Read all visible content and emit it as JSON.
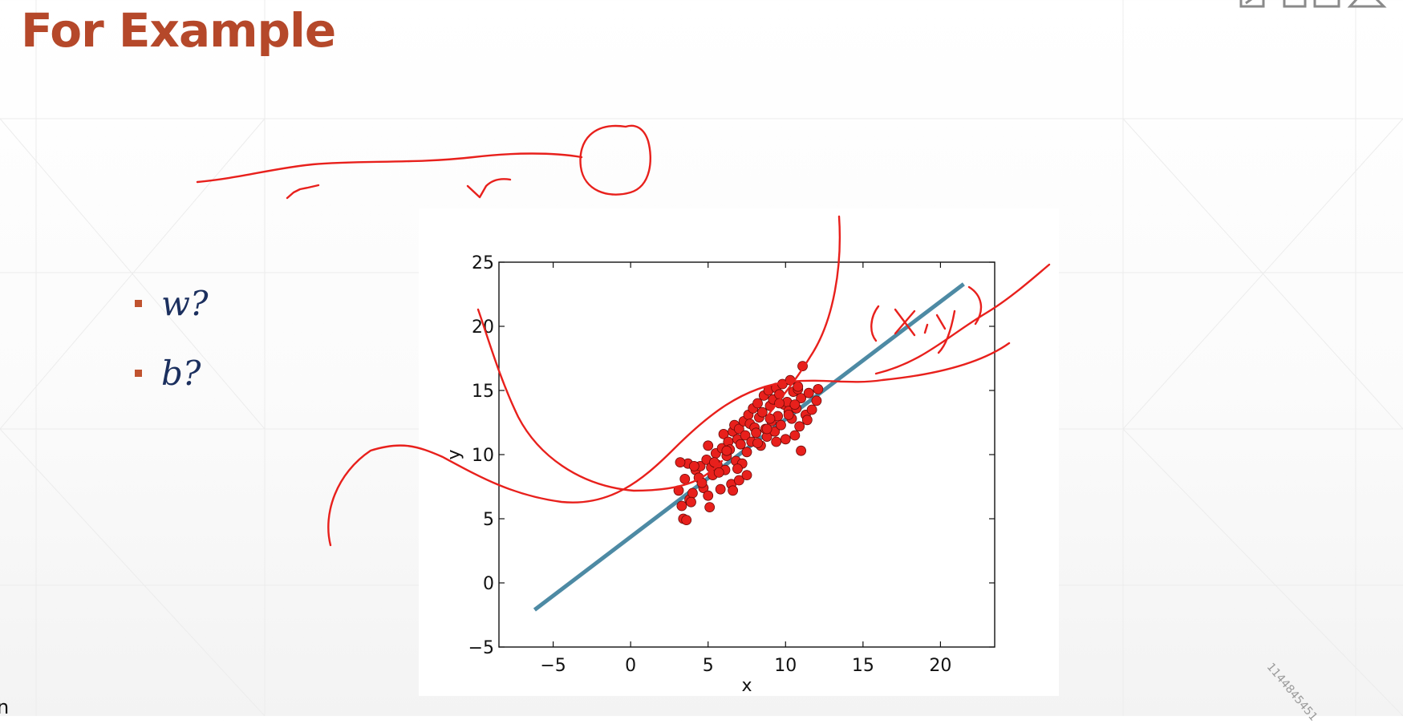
{
  "slide": {
    "title": "For Example",
    "bullets": [
      {
        "label": "w?"
      },
      {
        "label": "b?"
      }
    ],
    "watermark": "1144845451",
    "edge_glyph": "n"
  },
  "colors": {
    "title": "#b5482a",
    "bullet_text": "#1b2f5e",
    "fit_line": "#4d8aa4",
    "points": "#e8201c",
    "annotation_ink": "#e8201c"
  },
  "annotation_text": "(x, y)",
  "chart_data": {
    "type": "scatter",
    "xlabel": "x",
    "ylabel": "y",
    "xlim": [
      -8.5,
      23.5
    ],
    "ylim": [
      -5,
      25
    ],
    "xticks": [
      -5,
      0,
      5,
      10,
      15,
      20
    ],
    "yticks": [
      -5,
      0,
      5,
      10,
      15,
      20,
      25
    ],
    "xtick_labels": [
      "−5",
      "0",
      "5",
      "10",
      "15",
      "20"
    ],
    "ytick_labels": [
      "−5",
      "0",
      "5",
      "10",
      "15",
      "20",
      "25"
    ],
    "grid": false,
    "series": [
      {
        "kind": "points",
        "x": [
          3.1,
          3.3,
          3.4,
          3.6,
          3.7,
          3.8,
          3.5,
          4.0,
          4.2,
          4.4,
          4.5,
          4.7,
          4.9,
          5.0,
          5.1,
          5.2,
          5.3,
          5.5,
          5.6,
          5.8,
          5.9,
          6.0,
          6.1,
          6.2,
          6.3,
          6.4,
          6.5,
          6.6,
          6.7,
          6.8,
          6.9,
          7.0,
          7.1,
          7.2,
          7.3,
          7.4,
          7.5,
          7.6,
          7.7,
          7.8,
          7.9,
          8.0,
          8.1,
          8.2,
          8.3,
          8.4,
          8.5,
          8.6,
          8.7,
          8.8,
          8.9,
          9.0,
          9.1,
          9.2,
          9.3,
          9.4,
          9.5,
          9.6,
          9.7,
          9.8,
          9.9,
          10.0,
          10.1,
          10.2,
          10.3,
          10.4,
          10.5,
          10.6,
          10.7,
          10.8,
          10.9,
          11.0,
          11.1,
          11.3,
          11.5,
          11.7,
          12.0,
          4.1,
          5.4,
          6.2,
          7.0,
          3.9,
          5.0,
          6.9,
          8.2,
          9.0,
          9.6,
          10.2,
          10.8,
          11.0,
          12.1,
          3.2,
          4.6,
          5.7,
          6.6,
          7.5,
          8.8,
          9.4,
          10.6,
          11.4
        ],
        "y": [
          7.2,
          6.0,
          5.0,
          4.9,
          9.3,
          6.5,
          8.1,
          7.0,
          8.8,
          8.2,
          9.1,
          7.4,
          9.6,
          6.8,
          5.9,
          9.0,
          8.4,
          10.1,
          9.2,
          7.3,
          10.5,
          11.6,
          8.8,
          9.9,
          11.0,
          10.4,
          7.7,
          11.8,
          12.3,
          9.5,
          11.2,
          12.0,
          10.8,
          9.3,
          12.6,
          11.5,
          10.2,
          13.1,
          12.4,
          11.0,
          13.6,
          12.1,
          11.7,
          14.0,
          12.9,
          10.7,
          13.3,
          14.6,
          12.0,
          11.4,
          15.0,
          13.8,
          12.6,
          14.3,
          11.8,
          15.2,
          13.0,
          14.7,
          12.3,
          15.5,
          13.9,
          11.2,
          14.1,
          13.4,
          15.8,
          12.8,
          14.9,
          11.5,
          13.6,
          15.1,
          12.2,
          14.4,
          16.9,
          13.1,
          14.8,
          13.5,
          14.2,
          9.1,
          9.4,
          10.3,
          8.0,
          6.3,
          10.7,
          8.9,
          10.9,
          12.8,
          14.0,
          13.1,
          15.3,
          10.3,
          15.1,
          9.4,
          7.8,
          8.6,
          7.2,
          8.4,
          12.0,
          11.0,
          13.9,
          12.7
        ]
      },
      {
        "kind": "line",
        "x": [
          -6.2,
          21.5
        ],
        "y": [
          -2.1,
          23.3
        ]
      }
    ]
  }
}
